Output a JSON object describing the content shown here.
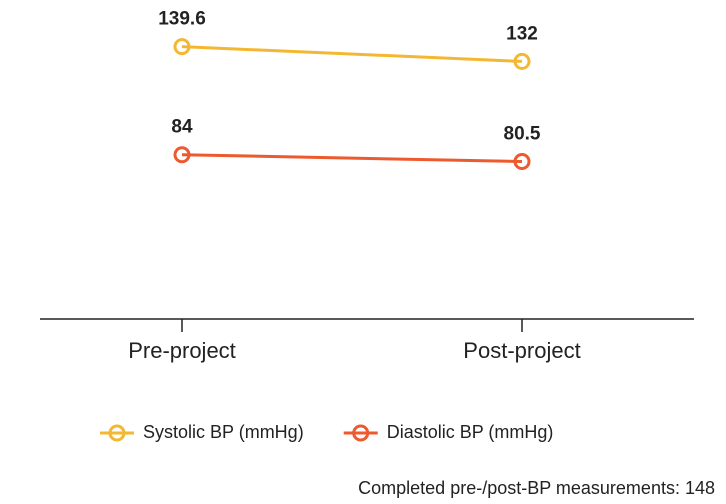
{
  "chart_data": {
    "type": "line",
    "categories": [
      "Pre-project",
      "Post-project"
    ],
    "series": [
      {
        "name": "Systolic BP (mmHg)",
        "color": "#f4b731",
        "label_color": "#222222",
        "values": [
          139.6,
          132
        ]
      },
      {
        "name": "Diastolic BP (mmHg)",
        "color": "#ec5a2e",
        "label_color": "#e5122d",
        "values": [
          84,
          80.5
        ]
      }
    ],
    "ylim": [
      0,
      160
    ],
    "grid": false,
    "legend": "bottom",
    "note": "Completed pre-/post-BP measurements: 148"
  }
}
